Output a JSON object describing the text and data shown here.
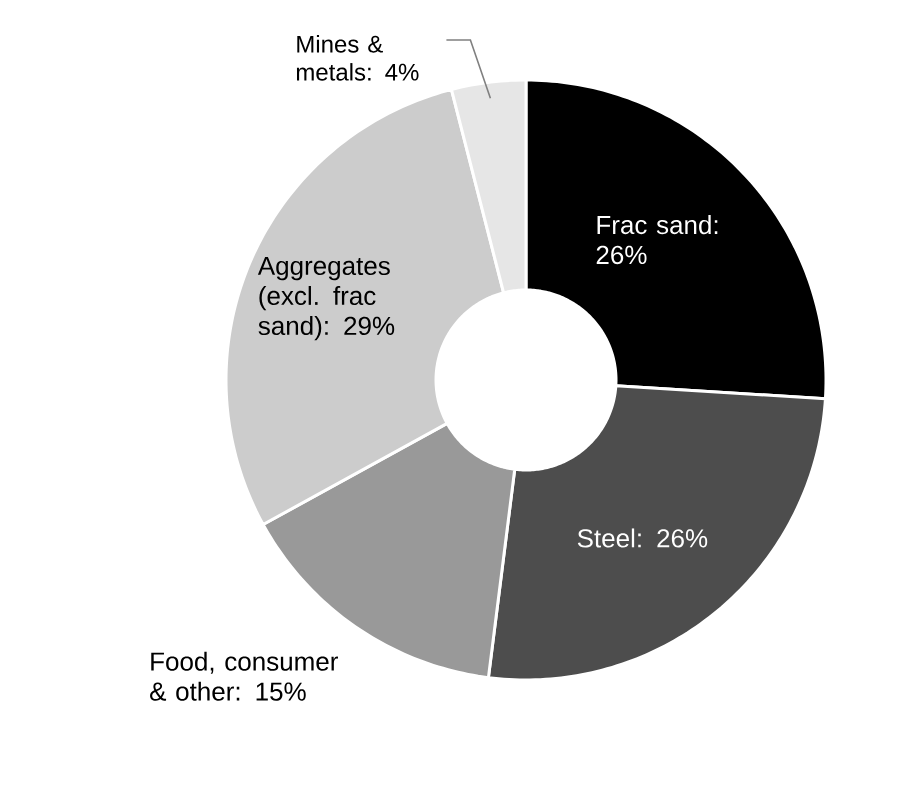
{
  "chart_data": {
    "type": "donut",
    "categories": [
      "Frac sand: 26%",
      "Steel: 26%",
      "Food, consumer & other: 15%",
      "Aggregates (excl. frac sand): 29%",
      "Mines & metals: 4%"
    ],
    "values": [
      26,
      26,
      15,
      29,
      4
    ],
    "colors": [
      "#000000",
      "#4d4d4d",
      "#999999",
      "#cccccc",
      "#e6e6e6"
    ]
  }
}
